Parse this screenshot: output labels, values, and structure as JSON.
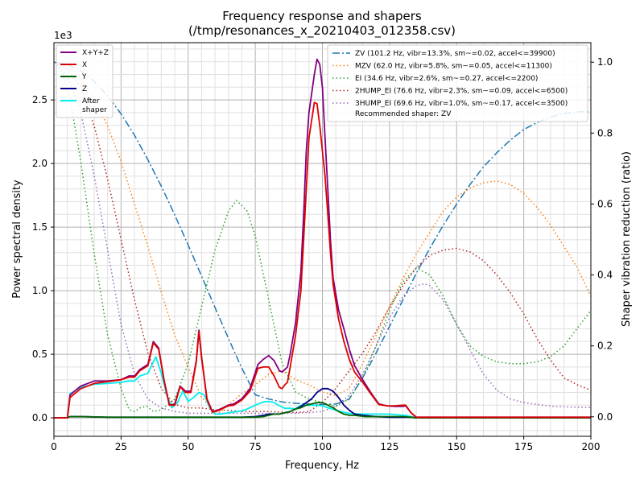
{
  "chart_data": {
    "type": "line",
    "title": "Frequency response and shapers",
    "subtitle": "(/tmp/resonances_x_20210403_012358.csv)",
    "xlabel": "Frequency, Hz",
    "ylabel": "Power spectral density",
    "y2label": "Shaper vibration reduction (ratio)",
    "y_scale_label": "1e3",
    "xlim": [
      0,
      200
    ],
    "ylim": [
      -145,
      2950
    ],
    "y2lim": [
      -0.055,
      1.055
    ],
    "x_ticks": [
      0,
      25,
      50,
      75,
      100,
      125,
      150,
      175,
      200
    ],
    "x_tick_labels": [
      "0",
      "25",
      "50",
      "75",
      "100",
      "125",
      "150",
      "175",
      "200"
    ],
    "y_ticks": [
      0,
      500,
      1000,
      1500,
      2000,
      2500
    ],
    "y_tick_labels": [
      "0.0",
      "0.5",
      "1.0",
      "1.5",
      "2.0",
      "2.5"
    ],
    "y2_ticks": [
      0,
      0.2,
      0.4,
      0.6,
      0.8,
      1.0
    ],
    "y2_tick_labels": [
      "0.0",
      "0.2",
      "0.4",
      "0.6",
      "0.8",
      "1.0"
    ],
    "grid": true,
    "legend_left_placement": "top-left",
    "legend_right_placement": "top-right",
    "series": [
      {
        "name": "X+Y+Z",
        "axis": "left",
        "color": "#800080",
        "style": "solid",
        "x": [
          0,
          5,
          6,
          10,
          15,
          20,
          25,
          28,
          30,
          32,
          35,
          37,
          39,
          41,
          43,
          45,
          47,
          49,
          51,
          53,
          54,
          55,
          57,
          59,
          61,
          63,
          65,
          67,
          70,
          73,
          76,
          78,
          80,
          82,
          84,
          85,
          86,
          87,
          88,
          90,
          92,
          93,
          94,
          95,
          97,
          98,
          99,
          100,
          101,
          102,
          103,
          104,
          106,
          108,
          110,
          112,
          115,
          118,
          121,
          124,
          127,
          130,
          131,
          133,
          135,
          140,
          150,
          160,
          180,
          200
        ],
        "y": [
          0,
          0,
          180,
          250,
          290,
          290,
          300,
          330,
          330,
          380,
          420,
          600,
          550,
          300,
          100,
          110,
          250,
          210,
          210,
          450,
          690,
          480,
          150,
          50,
          60,
          80,
          100,
          110,
          150,
          230,
          420,
          460,
          490,
          450,
          370,
          360,
          380,
          400,
          500,
          750,
          1150,
          1600,
          2100,
          2400,
          2700,
          2820,
          2780,
          2600,
          2200,
          1800,
          1400,
          1100,
          850,
          700,
          540,
          410,
          300,
          200,
          110,
          95,
          90,
          90,
          95,
          40,
          5,
          5,
          5,
          5,
          5,
          5
        ]
      },
      {
        "name": "X",
        "axis": "left",
        "color": "#dd0000",
        "style": "solid",
        "x": [
          0,
          5,
          6,
          10,
          15,
          20,
          25,
          28,
          30,
          32,
          35,
          37,
          39,
          41,
          43,
          45,
          47,
          49,
          51,
          53,
          54,
          55,
          57,
          59,
          61,
          63,
          65,
          67,
          70,
          73,
          76,
          78,
          80,
          82,
          84,
          85,
          86,
          87,
          88,
          90,
          92,
          93,
          94,
          95,
          97,
          98,
          99,
          100,
          101,
          102,
          103,
          104,
          106,
          108,
          110,
          112,
          115,
          118,
          121,
          124,
          127,
          130,
          131,
          133,
          135,
          140,
          150,
          160,
          180,
          200
        ],
        "y": [
          0,
          0,
          160,
          230,
          270,
          285,
          300,
          320,
          320,
          370,
          410,
          590,
          540,
          300,
          100,
          100,
          245,
          200,
          200,
          440,
          680,
          470,
          145,
          45,
          55,
          75,
          95,
          100,
          140,
          210,
          390,
          400,
          400,
          330,
          240,
          230,
          260,
          280,
          400,
          650,
          1000,
          1400,
          1800,
          2200,
          2480,
          2470,
          2300,
          2100,
          1900,
          1600,
          1300,
          1050,
          780,
          600,
          460,
          360,
          280,
          190,
          105,
          95,
          95,
          100,
          100,
          40,
          5,
          5,
          5,
          5,
          5,
          5
        ]
      },
      {
        "name": "Y",
        "axis": "left",
        "color": "#006400",
        "style": "solid",
        "x": [
          0,
          5,
          6,
          10,
          20,
          30,
          40,
          50,
          60,
          70,
          75,
          78,
          80,
          82,
          84,
          86,
          88,
          90,
          92,
          94,
          96,
          98,
          100,
          102,
          104,
          106,
          108,
          110,
          112,
          114,
          116,
          120,
          125,
          130,
          133,
          135,
          140,
          160,
          180,
          200
        ],
        "y": [
          0,
          0,
          10,
          10,
          5,
          5,
          5,
          5,
          5,
          5,
          5,
          10,
          20,
          30,
          30,
          40,
          50,
          70,
          80,
          100,
          110,
          120,
          120,
          100,
          80,
          50,
          30,
          20,
          20,
          15,
          10,
          10,
          10,
          10,
          5,
          0,
          0,
          0,
          0,
          0
        ]
      },
      {
        "name": "Z",
        "axis": "left",
        "color": "#00008b",
        "style": "solid",
        "x": [
          0,
          5,
          6,
          10,
          20,
          30,
          40,
          50,
          60,
          70,
          75,
          78,
          80,
          82,
          84,
          86,
          88,
          90,
          92,
          94,
          96,
          98,
          100,
          102,
          104,
          106,
          108,
          110,
          112,
          115,
          120,
          125,
          130,
          133,
          135,
          140,
          160,
          180,
          200
        ],
        "y": [
          0,
          0,
          10,
          10,
          5,
          5,
          5,
          5,
          5,
          5,
          10,
          20,
          30,
          30,
          30,
          40,
          50,
          70,
          90,
          120,
          150,
          200,
          230,
          230,
          210,
          160,
          100,
          60,
          30,
          20,
          10,
          5,
          5,
          5,
          0,
          0,
          0,
          0,
          0
        ]
      },
      {
        "name": "After\nshaper",
        "axis": "left",
        "color": "#00eeee",
        "style": "solid",
        "x": [
          0,
          5,
          6,
          10,
          15,
          20,
          25,
          28,
          30,
          32,
          35,
          37,
          38,
          40,
          42,
          44,
          46,
          48,
          50,
          52,
          54,
          56,
          58,
          60,
          62,
          65,
          70,
          72,
          75,
          78,
          80,
          82,
          84,
          86,
          88,
          90,
          92,
          95,
          98,
          100,
          102,
          105,
          108,
          110,
          115,
          120,
          125,
          130,
          131,
          133,
          135,
          140,
          160,
          180,
          200
        ],
        "y": [
          0,
          0,
          190,
          240,
          265,
          270,
          280,
          290,
          290,
          330,
          350,
          440,
          480,
          350,
          180,
          80,
          120,
          210,
          130,
          160,
          200,
          180,
          80,
          30,
          30,
          40,
          55,
          70,
          100,
          125,
          130,
          120,
          95,
          75,
          75,
          70,
          100,
          100,
          100,
          95,
          80,
          60,
          45,
          35,
          30,
          30,
          30,
          20,
          20,
          10,
          0,
          0,
          0,
          0,
          0
        ]
      },
      {
        "name": "ZV (101.2 Hz, vibr=13.3%, sm~=0.02, accel<=39900)",
        "axis": "right",
        "color": "#1f77b4",
        "style": "dashdot",
        "x": [
          0,
          5,
          10,
          15,
          20,
          25,
          30,
          35,
          40,
          45,
          50,
          55,
          60,
          65,
          70,
          75,
          80,
          85,
          90,
          95,
          100,
          101.2,
          105,
          110,
          115,
          120,
          125,
          130,
          135,
          140,
          145,
          150,
          155,
          160,
          165,
          170,
          175,
          180,
          185,
          190,
          195,
          200
        ],
        "y": [
          1.0,
          0.994,
          0.976,
          0.946,
          0.905,
          0.854,
          0.794,
          0.725,
          0.65,
          0.569,
          0.484,
          0.397,
          0.308,
          0.221,
          0.137,
          0.062,
          0.05,
          0.042,
          0.038,
          0.036,
          0.035,
          0.035,
          0.036,
          0.05,
          0.11,
          0.18,
          0.255,
          0.33,
          0.405,
          0.475,
          0.54,
          0.6,
          0.655,
          0.705,
          0.745,
          0.78,
          0.81,
          0.83,
          0.845,
          0.855,
          0.86,
          0.86
        ]
      },
      {
        "name": "MZV (62.0 Hz, vibr=5.8%, sm~=0.05, accel<=11300)",
        "axis": "right",
        "color": "#ff7f0e",
        "style": "dotted",
        "x": [
          0,
          5,
          10,
          15,
          20,
          25,
          30,
          35,
          40,
          45,
          50,
          55,
          60,
          62,
          65,
          70,
          75,
          80,
          85,
          90,
          95,
          100,
          105,
          110,
          115,
          120,
          125,
          130,
          135,
          140,
          145,
          150,
          155,
          160,
          165,
          170,
          175,
          180,
          185,
          190,
          195,
          200
        ],
        "y": [
          1.0,
          0.99,
          0.955,
          0.9,
          0.82,
          0.72,
          0.6,
          0.48,
          0.35,
          0.23,
          0.14,
          0.055,
          0.015,
          0.013,
          0.035,
          0.065,
          0.09,
          0.12,
          0.13,
          0.105,
          0.09,
          0.07,
          0.06,
          0.08,
          0.15,
          0.23,
          0.31,
          0.39,
          0.46,
          0.52,
          0.58,
          0.62,
          0.645,
          0.66,
          0.665,
          0.655,
          0.63,
          0.59,
          0.54,
          0.48,
          0.42,
          0.34
        ]
      },
      {
        "name": "EI (34.6 Hz, vibr=2.6%, sm~=0.27, accel<=2200)",
        "axis": "right",
        "color": "#2ca02c",
        "style": "dotted",
        "x": [
          0,
          3,
          6,
          10,
          15,
          20,
          25,
          28,
          30,
          32,
          34.6,
          37,
          40,
          45,
          50,
          55,
          60,
          65,
          68,
          72,
          75,
          80,
          85,
          90,
          95,
          100,
          105,
          110,
          115,
          120,
          125,
          130,
          135,
          140,
          145,
          150,
          155,
          160,
          165,
          170,
          175,
          180,
          185,
          190,
          195,
          200
        ],
        "y": [
          1.0,
          0.97,
          0.9,
          0.72,
          0.46,
          0.23,
          0.08,
          0.02,
          0.015,
          0.025,
          0.03,
          0.015,
          0.02,
          0.05,
          0.15,
          0.31,
          0.47,
          0.58,
          0.61,
          0.58,
          0.51,
          0.33,
          0.15,
          0.07,
          0.05,
          0.04,
          0.03,
          0.05,
          0.11,
          0.2,
          0.3,
          0.38,
          0.42,
          0.4,
          0.34,
          0.26,
          0.2,
          0.17,
          0.155,
          0.15,
          0.15,
          0.155,
          0.17,
          0.2,
          0.25,
          0.3
        ]
      },
      {
        "name": "2HUMP_EI (76.6 Hz, vibr=2.3%, sm~=0.09, accel<=6500)",
        "axis": "right",
        "color": "#b22222",
        "style": "dotted",
        "x": [
          0,
          5,
          10,
          15,
          20,
          25,
          30,
          35,
          40,
          45,
          50,
          55,
          60,
          65,
          70,
          75,
          80,
          85,
          90,
          95,
          100,
          105,
          110,
          115,
          120,
          125,
          130,
          135,
          140,
          145,
          150,
          155,
          160,
          165,
          170,
          175,
          180,
          185,
          190,
          195,
          200
        ],
        "y": [
          1.0,
          0.98,
          0.93,
          0.82,
          0.67,
          0.5,
          0.33,
          0.18,
          0.08,
          0.035,
          0.025,
          0.025,
          0.02,
          0.018,
          0.015,
          0.015,
          0.015,
          0.013,
          0.012,
          0.015,
          0.04,
          0.08,
          0.13,
          0.18,
          0.24,
          0.31,
          0.37,
          0.42,
          0.455,
          0.47,
          0.475,
          0.465,
          0.44,
          0.4,
          0.35,
          0.29,
          0.22,
          0.16,
          0.11,
          0.09,
          0.075
        ]
      },
      {
        "name": "3HUMP_EI (69.6 Hz, vibr=1.0%, sm~=0.17, accel<=3500)",
        "axis": "right",
        "color": "#9467bd",
        "style": "dotted",
        "x": [
          0,
          5,
          10,
          15,
          20,
          25,
          30,
          35,
          40,
          45,
          50,
          55,
          60,
          65,
          70,
          75,
          80,
          85,
          90,
          95,
          100,
          105,
          110,
          115,
          120,
          125,
          130,
          135,
          138,
          140,
          145,
          150,
          155,
          160,
          165,
          170,
          175,
          180,
          185,
          190,
          195,
          200
        ],
        "y": [
          1.0,
          0.96,
          0.86,
          0.68,
          0.47,
          0.26,
          0.12,
          0.05,
          0.025,
          0.015,
          0.01,
          0.01,
          0.01,
          0.01,
          0.01,
          0.01,
          0.01,
          0.01,
          0.01,
          0.012,
          0.015,
          0.03,
          0.06,
          0.12,
          0.2,
          0.28,
          0.34,
          0.37,
          0.375,
          0.37,
          0.33,
          0.26,
          0.19,
          0.12,
          0.075,
          0.05,
          0.04,
          0.035,
          0.03,
          0.028,
          0.027,
          0.026
        ]
      }
    ],
    "recommended_text": "Recommended shaper: ZV"
  }
}
